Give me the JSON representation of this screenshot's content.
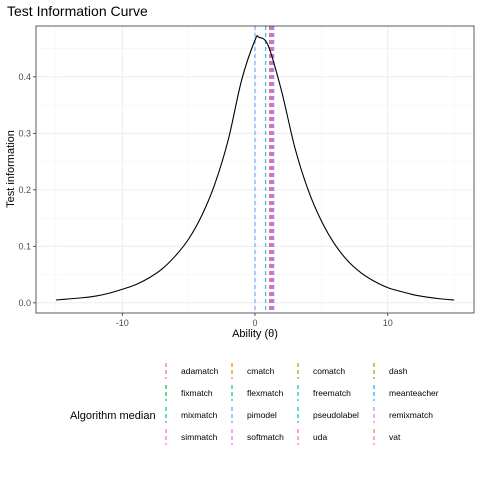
{
  "chart_data": {
    "type": "line",
    "title": "Test Information Curve",
    "xlabel": "Ability (θ)",
    "ylabel": "Test information",
    "xlim": [
      -16.5,
      16.5
    ],
    "ylim": [
      -0.018,
      0.49
    ],
    "x_ticks": [
      -10,
      0,
      10
    ],
    "x_tick_labels": [
      "-10",
      "0",
      "10"
    ],
    "y_ticks": [
      0.0,
      0.1,
      0.2,
      0.3,
      0.4
    ],
    "y_tick_labels": [
      "0.0",
      "0.1",
      "0.2",
      "0.3",
      "0.4"
    ],
    "grid": true,
    "curve": {
      "x": [
        -15,
        -14,
        -13,
        -12,
        -11,
        -10,
        -9,
        -8,
        -7,
        -6,
        -5,
        -4,
        -3,
        -2,
        -1,
        0,
        0.3,
        1,
        2,
        3,
        4,
        5,
        6,
        7,
        8,
        9,
        10,
        11,
        12,
        13,
        14,
        15
      ],
      "y": [
        0.005,
        0.007,
        0.009,
        0.012,
        0.017,
        0.024,
        0.032,
        0.044,
        0.06,
        0.083,
        0.113,
        0.155,
        0.212,
        0.29,
        0.395,
        0.465,
        0.47,
        0.455,
        0.375,
        0.275,
        0.2,
        0.145,
        0.104,
        0.074,
        0.053,
        0.038,
        0.027,
        0.02,
        0.014,
        0.01,
        0.007,
        0.005
      ],
      "color": "#000000"
    },
    "legend_title": "Algorithm median",
    "legend_position": "bottom",
    "series": [
      {
        "name": "adamatch",
        "median": 1.2,
        "color": "#F8766D"
      },
      {
        "name": "cmatch",
        "median": 1.3,
        "color": "#DE8C00"
      },
      {
        "name": "comatch",
        "median": 1.1,
        "color": "#B79F00"
      },
      {
        "name": "dash",
        "median": 1.2,
        "color": "#7CAE00"
      },
      {
        "name": "fixmatch",
        "median": 1.3,
        "color": "#00BA38"
      },
      {
        "name": "flexmatch",
        "median": 1.2,
        "color": "#00C08B"
      },
      {
        "name": "freematch",
        "median": 1.4,
        "color": "#00BFC4"
      },
      {
        "name": "meanteacher",
        "median": 0.8,
        "color": "#00B4F0"
      },
      {
        "name": "mixmatch",
        "median": 1.1,
        "color": "#00BFC4"
      },
      {
        "name": "pimodel",
        "median": 0.0,
        "color": "#619CFF"
      },
      {
        "name": "pseudolabel",
        "median": 1.3,
        "color": "#00B4F0"
      },
      {
        "name": "remixmatch",
        "median": 1.2,
        "color": "#C77CFF"
      },
      {
        "name": "simmatch",
        "median": 1.4,
        "color": "#F564E3"
      },
      {
        "name": "softmatch",
        "median": 1.3,
        "color": "#E76BF3"
      },
      {
        "name": "uda",
        "median": 1.2,
        "color": "#FF64B0"
      },
      {
        "name": "vat",
        "median": 1.1,
        "color": "#FF6C91"
      }
    ]
  }
}
